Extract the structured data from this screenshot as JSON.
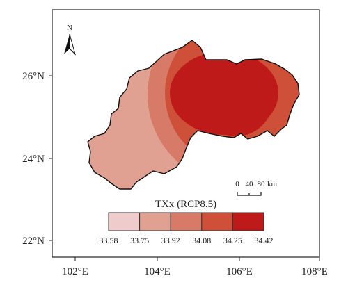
{
  "map": {
    "north_label": "N",
    "y_ticks": [
      "26°N",
      "24°N",
      "22°N"
    ],
    "x_ticks": [
      "102°E",
      "104°E",
      "106°E",
      "108°E"
    ],
    "scale_bar": {
      "values": [
        "0",
        "40",
        "80"
      ],
      "unit": "km"
    },
    "legend": {
      "title": "TXx (RCP8.5)",
      "breaks": [
        "33.58",
        "33.75",
        "33.92",
        "34.08",
        "34.25",
        "34.42"
      ],
      "colors": [
        "#efcccc",
        "#e0a092",
        "#d87a68",
        "#cf5039",
        "#bf1a1a"
      ]
    },
    "region_outline_color": "#111111"
  }
}
